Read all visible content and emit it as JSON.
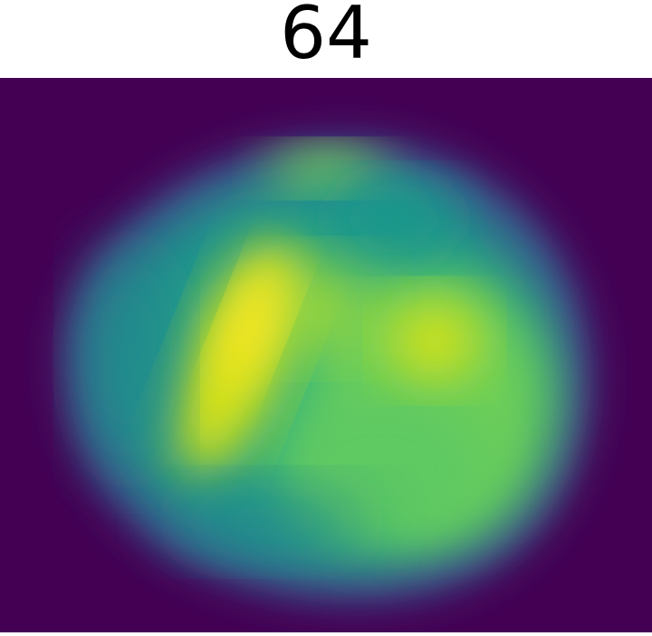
{
  "title": "64",
  "image": {
    "subject": "heatmap-blob",
    "colormap": "viridis",
    "colors": {
      "background": "#440154",
      "blob_base": "#2a788e",
      "mid": "#22a884",
      "bright": "#7ad151",
      "peak": "#fde725"
    }
  }
}
